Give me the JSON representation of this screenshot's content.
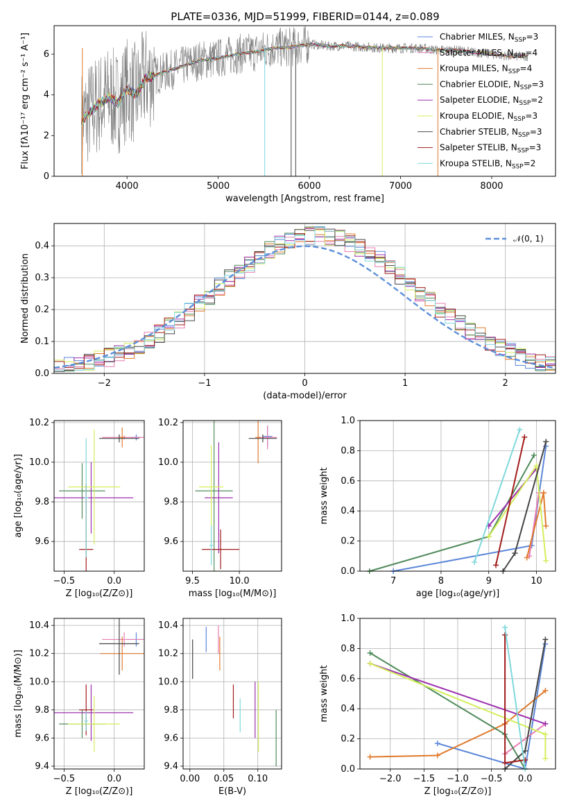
{
  "figure_title": "PLATE=0336, MJD=51999, FIBERID=0144, z=0.089",
  "colors": {
    "chabrier_miles": "#5b86d9",
    "salpeter_miles": "#e87db0",
    "kroupa_miles": "#e07a2c",
    "chabrier_elodie": "#4f8a5a",
    "salpeter_elodie": "#9b2fae",
    "kroupa_elodie": "#d4ee5a",
    "chabrier_stelib": "#444444",
    "salpeter_stelib": "#a11a1a",
    "kroupa_stelib": "#7fd8dc",
    "normal": "#5b8fd9",
    "grid": "#b0b0b0"
  },
  "chart_data": [
    {
      "id": "spectrum",
      "type": "line",
      "xlabel": "wavelength [Angstrom, rest frame]",
      "ylabel": "Flux [fλ10⁻¹⁷ erg cm⁻² s⁻¹ A⁻¹]",
      "xlim": [
        3200,
        8700
      ],
      "ylim": [
        0,
        7.4
      ],
      "xticks": [
        "4000",
        "5000",
        "6000",
        "7000",
        "8000"
      ],
      "yticks": [
        "0",
        "2",
        "4",
        "6"
      ],
      "legend_position": "top-right",
      "legend": [
        "Chabrier MILES, N_SSP=3",
        "Salpeter MILES, N_SSP=4",
        "Kroupa MILES, N_SSP=4",
        "Chabrier ELODIE, N_SSP=3",
        "Salpeter ELODIE, N_SSP=2",
        "Kroupa ELODIE, N_SSP=3",
        "Chabrier STELIB, N_SSP=3",
        "Salpeter STELIB, N_SSP=3",
        "Kroupa STELIB, N_SSP=2"
      ],
      "model_curve": {
        "x": [
          3500,
          3600,
          3700,
          3800,
          3900,
          4000,
          4100,
          4200,
          4400,
          4600,
          4800,
          5000,
          5200,
          5400,
          5600,
          5800,
          6000,
          6200,
          6400,
          6600,
          6800,
          7000,
          7200,
          7400,
          7600,
          7800,
          8000,
          8200,
          8400
        ],
        "y": [
          2.7,
          3.2,
          3.6,
          3.9,
          3.6,
          4.3,
          4.0,
          4.8,
          5.1,
          5.4,
          5.7,
          5.8,
          6.0,
          6.1,
          6.3,
          6.35,
          6.5,
          6.4,
          6.4,
          6.35,
          6.3,
          6.3,
          6.3,
          6.2,
          6.2,
          6.1,
          6.0,
          5.9,
          5.9
        ]
      }
    },
    {
      "id": "residuals",
      "type": "histogram",
      "xlabel": "(data-model)/error",
      "ylabel": "Normed distribution",
      "xlim": [
        -2.5,
        2.5
      ],
      "ylim": [
        0,
        0.47
      ],
      "xticks": [
        "−2",
        "−1",
        "0",
        "1",
        "2"
      ],
      "yticks": [
        "0.0",
        "0.1",
        "0.2",
        "0.3",
        "0.4"
      ],
      "legend": [
        "𝒩(0, 1)"
      ],
      "legend_position": "top-right",
      "bins": [
        -2.5,
        -2.4,
        -2.3,
        -2.2,
        -2.1,
        -2.0,
        -1.9,
        -1.8,
        -1.7,
        -1.6,
        -1.5,
        -1.4,
        -1.3,
        -1.2,
        -1.1,
        -1.0,
        -0.9,
        -0.8,
        -0.7,
        -0.6,
        -0.5,
        -0.4,
        -0.3,
        -0.2,
        -0.1,
        0.0,
        0.1,
        0.2,
        0.3,
        0.4,
        0.5,
        0.6,
        0.7,
        0.8,
        0.9,
        1.0,
        1.1,
        1.2,
        1.3,
        1.4,
        1.5,
        1.6,
        1.7,
        1.8,
        1.9,
        2.0,
        2.1,
        2.2,
        2.3,
        2.4,
        2.5
      ]
    },
    {
      "id": "age_vs_Z",
      "type": "errorbar",
      "xlabel": "Z [log₁₀(Z/Z⊙)]",
      "ylabel": "age  [log₁₀(age/yr)]",
      "xlim": [
        -0.6,
        0.3
      ],
      "ylim": [
        9.45,
        10.21
      ],
      "xticks": [
        "−0.5",
        "0.0"
      ],
      "yticks": [
        "9.6",
        "9.8",
        "10.0",
        "10.2"
      ],
      "points": [
        {
          "x": 0.22,
          "y": 10.125,
          "xe": 0.05,
          "ye": 0.015
        },
        {
          "x": 0.1,
          "y": 10.125,
          "xe": 0.22,
          "ye": 0.01
        },
        {
          "x": 0.08,
          "y": 10.125,
          "xe": 0.03,
          "ye": 0.05
        },
        {
          "x": -0.32,
          "y": 9.855,
          "xe": 0.23,
          "ye": 0.14
        },
        {
          "x": -0.23,
          "y": 9.82,
          "xe": 0.42,
          "ye": 0.18
        },
        {
          "x": -0.2,
          "y": 9.875,
          "xe": 0.26,
          "ye": 0.29
        },
        {
          "x": 0.05,
          "y": 10.12,
          "xe": 0.2,
          "ye": 0.02
        },
        {
          "x": -0.28,
          "y": 9.56,
          "xe": 0.07,
          "ye": 0.33
        },
        {
          "x": -0.28,
          "y": 9.82,
          "xe": 0.02,
          "ye": 0.3
        }
      ]
    },
    {
      "id": "age_vs_mass",
      "type": "errorbar",
      "xlabel": "mass [log₁₀(M/M⊙)]",
      "ylabel": "",
      "xlim": [
        9.4,
        10.45
      ],
      "ylim": [
        9.45,
        10.21
      ],
      "xticks": [
        "9.5",
        "10.0"
      ],
      "yticks": [
        "9.6",
        "9.8",
        "10.0",
        "10.2"
      ],
      "points": [
        {
          "x": 10.3,
          "y": 10.13,
          "xe": 0.05,
          "ye": 0.05
        },
        {
          "x": 10.3,
          "y": 10.125,
          "xe": 0.1,
          "ye": 0.06
        },
        {
          "x": 10.2,
          "y": 10.125,
          "xe": 0.03,
          "ye": 0.13
        },
        {
          "x": 9.73,
          "y": 9.855,
          "xe": 0.2,
          "ye": 0.42
        },
        {
          "x": 9.78,
          "y": 9.82,
          "xe": 0.15,
          "ye": 0.28
        },
        {
          "x": 9.7,
          "y": 9.875,
          "xe": 0.13,
          "ye": 0.21
        },
        {
          "x": 10.25,
          "y": 10.12,
          "xe": 0.15,
          "ye": 0.02
        },
        {
          "x": 9.8,
          "y": 9.56,
          "xe": 0.2,
          "ye": 0.1
        },
        {
          "x": 9.7,
          "y": 9.58,
          "xe": 0.02,
          "ye": 0.1
        }
      ]
    },
    {
      "id": "weight_vs_age",
      "type": "line",
      "xlabel": "age  [log₁₀(age/yr)]",
      "ylabel": "mass weight",
      "xlim": [
        6.3,
        10.4
      ],
      "ylim": [
        0,
        1.0
      ],
      "xticks": [
        "7",
        "8",
        "9",
        "10"
      ],
      "yticks": [
        "0.0",
        "0.2",
        "0.4",
        "0.6",
        "0.8",
        "1.0"
      ],
      "series": [
        {
          "x": [
            7.0,
            9.9,
            10.2
          ],
          "y": [
            0.0,
            0.17,
            0.83
          ]
        },
        {
          "x": [
            9.85,
            10.05
          ],
          "y": [
            0.1,
            0.52
          ]
        },
        {
          "x": [
            9.8,
            10.15,
            10.2,
            10.15
          ],
          "y": [
            0.09,
            0.52,
            0.3,
            0.52
          ]
        },
        {
          "x": [
            6.5,
            9.0,
            9.95
          ],
          "y": [
            0.0,
            0.23,
            0.77
          ]
        },
        {
          "x": [
            9.0,
            10.0
          ],
          "y": [
            0.3,
            0.68
          ]
        },
        {
          "x": [
            9.0,
            10.0,
            10.2
          ],
          "y": [
            0.23,
            0.7,
            0.07
          ]
        },
        {
          "x": [
            9.3,
            9.55,
            10.2
          ],
          "y": [
            0.0,
            0.12,
            0.86
          ]
        },
        {
          "x": [
            9.15,
            9.75
          ],
          "y": [
            0.04,
            0.89
          ]
        },
        {
          "x": [
            8.7,
            9.65
          ],
          "y": [
            0.06,
            0.94
          ]
        }
      ]
    },
    {
      "id": "mass_vs_Z",
      "type": "errorbar",
      "xlabel": "Z [log₁₀(Z/Z⊙)]",
      "ylabel": "mass [log₁₀(M/M⊙)]",
      "xlim": [
        -0.6,
        0.3
      ],
      "ylim": [
        9.38,
        10.45
      ],
      "xticks": [
        "−0.5",
        "0.0"
      ],
      "yticks": [
        "9.4",
        "9.6",
        "9.8",
        "10.0",
        "10.2",
        "10.4"
      ],
      "points": [
        {
          "x": 0.22,
          "y": 10.3,
          "xe": 0.08,
          "ye": 0.05
        },
        {
          "x": 0.1,
          "y": 10.3,
          "xe": 0.22,
          "ye": 0.05
        },
        {
          "x": 0.08,
          "y": 10.2,
          "xe": 0.22,
          "ye": 0.12
        },
        {
          "x": -0.32,
          "y": 9.7,
          "xe": 0.23,
          "ye": 0.1
        },
        {
          "x": -0.23,
          "y": 9.78,
          "xe": 0.42,
          "ye": 0.2
        },
        {
          "x": -0.2,
          "y": 9.7,
          "xe": 0.26,
          "ye": 0.2
        },
        {
          "x": 0.05,
          "y": 10.27,
          "xe": 0.2,
          "ye": 0.22
        },
        {
          "x": -0.28,
          "y": 9.8,
          "xe": 0.07,
          "ye": 0.18
        },
        {
          "x": -0.28,
          "y": 9.72,
          "xe": 0.02,
          "ye": 0.07
        }
      ]
    },
    {
      "id": "mass_vs_ebv",
      "type": "errorbar",
      "xlabel": "E(B-V)",
      "ylabel": "",
      "xlim": [
        -0.01,
        0.135
      ],
      "ylim": [
        9.38,
        10.45
      ],
      "xticks": [
        "0.00",
        "0.05",
        "0.10"
      ],
      "yticks": [
        "9.4",
        "9.6",
        "9.8",
        "10.0",
        "10.2",
        "10.4"
      ],
      "points": [
        {
          "x": 0.024,
          "y": 10.3,
          "xe": 0.0,
          "ye": 0.09
        },
        {
          "x": 0.042,
          "y": 10.3,
          "xe": 0.0,
          "ye": 0.1
        },
        {
          "x": 0.044,
          "y": 10.2,
          "xe": 0.0,
          "ye": 0.12
        },
        {
          "x": 0.127,
          "y": 9.6,
          "xe": 0.0,
          "ye": 0.2
        },
        {
          "x": 0.096,
          "y": 9.8,
          "xe": 0.0,
          "ye": 0.2
        },
        {
          "x": 0.101,
          "y": 9.75,
          "xe": 0.0,
          "ye": 0.25
        },
        {
          "x": 0.004,
          "y": 10.16,
          "xe": 0.0,
          "ye": 0.14
        },
        {
          "x": 0.064,
          "y": 9.86,
          "xe": 0.0,
          "ye": 0.12
        },
        {
          "x": 0.074,
          "y": 9.76,
          "xe": 0.0,
          "ye": 0.12
        }
      ]
    },
    {
      "id": "weight_vs_Z",
      "type": "line",
      "xlabel": "Z [log₁₀(Z/Z⊙)]",
      "ylabel": "mass weight",
      "xlim": [
        -2.45,
        0.45
      ],
      "ylim": [
        0,
        1.0
      ],
      "xticks": [
        "−2.0",
        "−1.5",
        "−1.0",
        "−0.5",
        "0.0"
      ],
      "yticks": [
        "0.0",
        "0.2",
        "0.4",
        "0.6",
        "0.8",
        "1.0"
      ],
      "series": [
        {
          "x": [
            -1.3,
            0.0,
            0.3
          ],
          "y": [
            0.17,
            0.0,
            0.83
          ]
        },
        {
          "x": [
            -0.3,
            0.3
          ],
          "y": [
            0.1,
            0.3
          ]
        },
        {
          "x": [
            -2.3,
            -1.3,
            -0.3,
            0.3
          ],
          "y": [
            0.08,
            0.09,
            0.3,
            0.52
          ]
        },
        {
          "x": [
            -2.3,
            -0.3,
            0.0
          ],
          "y": [
            0.77,
            0.23,
            0.0
          ]
        },
        {
          "x": [
            -2.3,
            0.3
          ],
          "y": [
            0.7,
            0.3
          ]
        },
        {
          "x": [
            -2.3,
            0.3,
            0.3
          ],
          "y": [
            0.7,
            0.23,
            0.07
          ]
        },
        {
          "x": [
            -0.3,
            0.0,
            0.3
          ],
          "y": [
            0.0,
            0.12,
            0.86
          ]
        },
        {
          "x": [
            -0.3,
            -0.3,
            0.0
          ],
          "y": [
            0.89,
            0.04,
            0.06
          ]
        },
        {
          "x": [
            -0.3,
            0.0
          ],
          "y": [
            0.94,
            0.0
          ]
        }
      ]
    }
  ]
}
